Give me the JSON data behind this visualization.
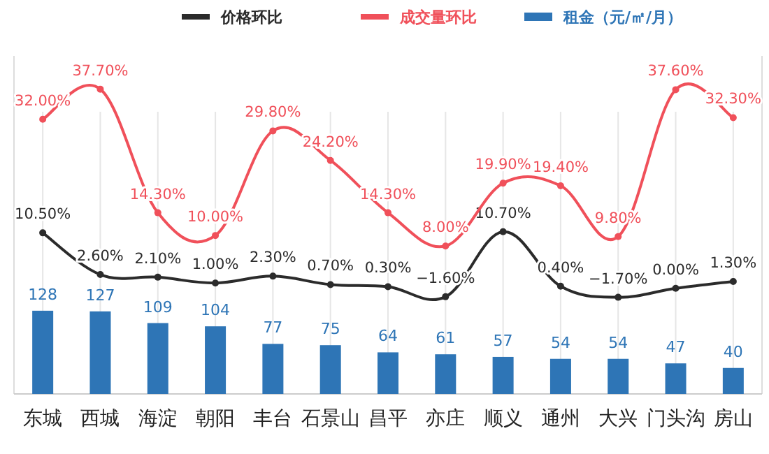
{
  "chart_data": {
    "type": "bar",
    "categories": [
      "东城",
      "西城",
      "海淀",
      "朝阳",
      "丰台",
      "石景山",
      "昌平",
      "亦庄",
      "顺义",
      "通州",
      "大兴",
      "门头沟",
      "房山"
    ],
    "series": [
      {
        "name": "价格环比",
        "type": "line",
        "axis": "y2",
        "color": "#2b2b2b",
        "values": [
          10.5,
          2.6,
          2.1,
          1.0,
          2.3,
          0.7,
          0.3,
          -1.6,
          10.7,
          0.4,
          -1.7,
          0.0,
          1.3
        ],
        "value_labels": [
          "10.50%",
          "2.60%",
          "2.10%",
          "1.00%",
          "2.30%",
          "0.70%",
          "0.30%",
          "−1.60%",
          "10.70%",
          "0.40%",
          "−1.70%",
          "0.00%",
          "1.30%"
        ]
      },
      {
        "name": "成交量环比",
        "type": "line",
        "axis": "y2",
        "color": "#f0505a",
        "values": [
          32.0,
          37.7,
          14.3,
          10.0,
          29.8,
          24.2,
          14.3,
          8.0,
          19.9,
          19.4,
          9.8,
          37.6,
          32.3
        ],
        "value_labels": [
          "32.00%",
          "37.70%",
          "14.30%",
          "10.00%",
          "29.80%",
          "24.20%",
          "14.30%",
          "8.00%",
          "19.90%",
          "19.40%",
          "9.80%",
          "37.60%",
          "32.30%"
        ]
      },
      {
        "name": "租金（元/㎡/月）",
        "color": "#2e75b6",
        "values": [
          128,
          127,
          109,
          104,
          77,
          75,
          64,
          61,
          57,
          54,
          54,
          47,
          40
        ],
        "value_labels": [
          "128",
          "127",
          "109",
          "104",
          "77",
          "75",
          "64",
          "61",
          "57",
          "54",
          "54",
          "47",
          "40"
        ]
      }
    ],
    "ylim": [
      0,
      520
    ],
    "y2lim": [
      -20,
      44
    ],
    "tick_labels": "x",
    "grid": "x",
    "legend": "top",
    "marker": "circle"
  }
}
